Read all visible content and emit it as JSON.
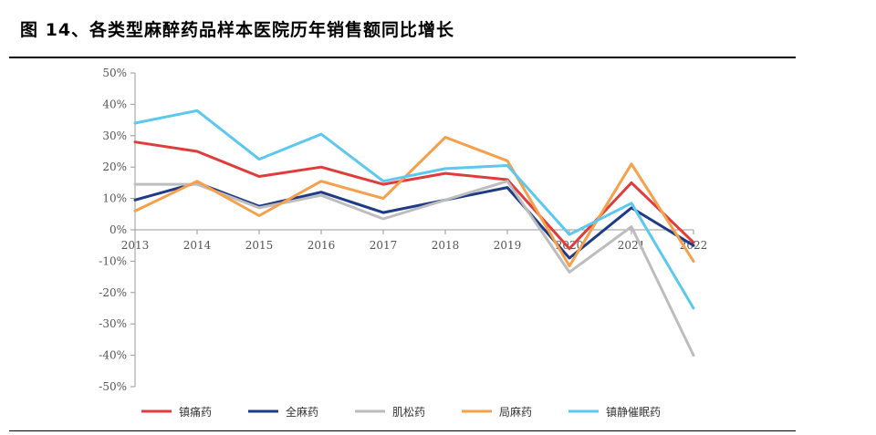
{
  "figure": {
    "title": "图 14、各类型麻醉药品样本医院历年销售额同比增长"
  },
  "chart_data": {
    "type": "line",
    "title": "",
    "xlabel": "",
    "ylabel": "",
    "ylim": [
      -50,
      50
    ],
    "y_ticks": [
      50,
      40,
      30,
      20,
      10,
      0,
      -10,
      -20,
      -30,
      -40,
      -50
    ],
    "y_tick_labels": [
      "50%",
      "40%",
      "30%",
      "20%",
      "10%",
      "0%",
      "-10%",
      "-20%",
      "-30%",
      "-40%",
      "-50%"
    ],
    "x": [
      "2013",
      "2014",
      "2015",
      "2016",
      "2017",
      "2018",
      "2019",
      "2020",
      "2021",
      "2022"
    ],
    "grid": false,
    "legend_position": "bottom",
    "series": [
      {
        "name": "镇痛药",
        "color": "#e03c3c",
        "values": [
          28,
          25,
          17,
          20,
          14.5,
          18,
          16,
          -6,
          15,
          -4
        ]
      },
      {
        "name": "全麻药",
        "color": "#1f3b87",
        "values": [
          9.5,
          15,
          7.5,
          12,
          5.5,
          9.5,
          13.5,
          -9,
          7,
          -5
        ]
      },
      {
        "name": "肌松药",
        "color": "#bdbdbd",
        "values": [
          14.5,
          14.5,
          7,
          11,
          3.5,
          9.5,
          15.5,
          -13.5,
          1,
          -40
        ]
      },
      {
        "name": "局麻药",
        "color": "#f5a04a",
        "values": [
          6,
          15.5,
          4.5,
          15.5,
          10,
          29.5,
          22,
          -11.5,
          21,
          -10
        ]
      },
      {
        "name": "镇静催眠药",
        "color": "#5bc8ef",
        "values": [
          34,
          38,
          22.5,
          30.5,
          15.5,
          19.5,
          20.5,
          -1.5,
          8.5,
          -25
        ]
      }
    ]
  }
}
